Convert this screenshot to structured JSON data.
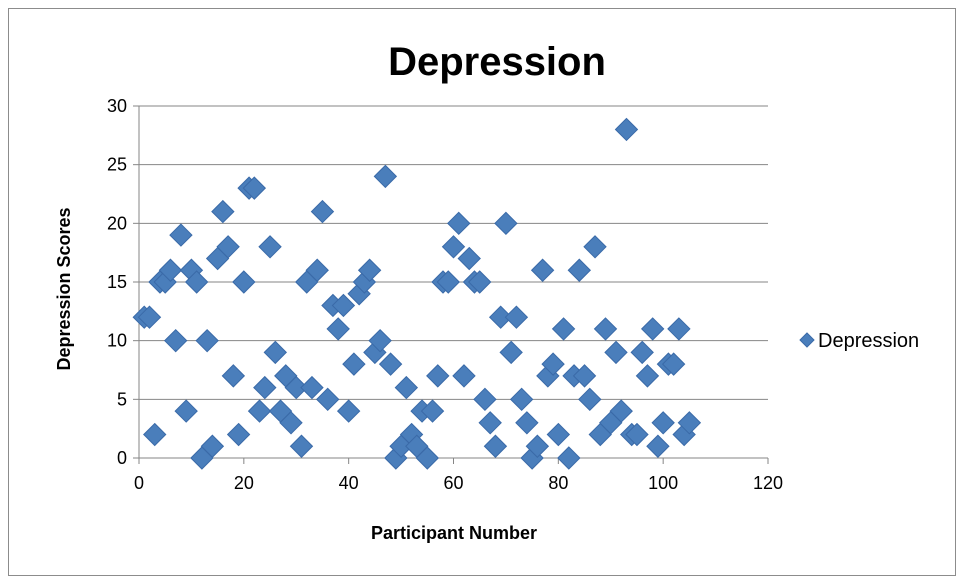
{
  "chart_data": {
    "type": "scatter",
    "title": "Depression",
    "xlabel": "Participant Number",
    "ylabel": "Depression Scores",
    "xlim": [
      0,
      120
    ],
    "ylim": [
      0,
      30
    ],
    "xticks": [
      0,
      20,
      40,
      60,
      80,
      100,
      120
    ],
    "yticks": [
      0,
      5,
      10,
      15,
      20,
      25,
      30
    ],
    "grid": "horizontal major gridlines",
    "legend_position": "right",
    "series": [
      {
        "name": "Depression",
        "color": "#4a7ebb",
        "marker": "diamond",
        "points": [
          [
            1,
            12
          ],
          [
            2,
            12
          ],
          [
            3,
            2
          ],
          [
            4,
            15
          ],
          [
            5,
            15
          ],
          [
            6,
            16
          ],
          [
            7,
            10
          ],
          [
            8,
            19
          ],
          [
            9,
            4
          ],
          [
            10,
            16
          ],
          [
            11,
            15
          ],
          [
            12,
            0
          ],
          [
            13,
            10
          ],
          [
            14,
            1
          ],
          [
            15,
            17
          ],
          [
            16,
            21
          ],
          [
            17,
            18
          ],
          [
            18,
            7
          ],
          [
            19,
            2
          ],
          [
            20,
            15
          ],
          [
            21,
            23
          ],
          [
            22,
            23
          ],
          [
            23,
            4
          ],
          [
            24,
            6
          ],
          [
            25,
            18
          ],
          [
            26,
            9
          ],
          [
            27,
            4
          ],
          [
            28,
            7
          ],
          [
            29,
            3
          ],
          [
            30,
            6
          ],
          [
            31,
            1
          ],
          [
            32,
            15
          ],
          [
            33,
            6
          ],
          [
            34,
            16
          ],
          [
            35,
            21
          ],
          [
            36,
            5
          ],
          [
            37,
            13
          ],
          [
            38,
            11
          ],
          [
            39,
            13
          ],
          [
            40,
            4
          ],
          [
            41,
            8
          ],
          [
            42,
            14
          ],
          [
            43,
            15
          ],
          [
            44,
            16
          ],
          [
            45,
            9
          ],
          [
            46,
            10
          ],
          [
            47,
            24
          ],
          [
            48,
            8
          ],
          [
            49,
            0
          ],
          [
            50,
            1
          ],
          [
            51,
            6
          ],
          [
            52,
            2
          ],
          [
            53,
            1
          ],
          [
            54,
            4
          ],
          [
            55,
            0
          ],
          [
            56,
            4
          ],
          [
            57,
            7
          ],
          [
            58,
            15
          ],
          [
            59,
            15
          ],
          [
            60,
            18
          ],
          [
            61,
            20
          ],
          [
            62,
            7
          ],
          [
            63,
            17
          ],
          [
            64,
            15
          ],
          [
            65,
            15
          ],
          [
            66,
            5
          ],
          [
            67,
            3
          ],
          [
            68,
            1
          ],
          [
            69,
            12
          ],
          [
            70,
            20
          ],
          [
            71,
            9
          ],
          [
            72,
            12
          ],
          [
            73,
            5
          ],
          [
            74,
            3
          ],
          [
            75,
            0
          ],
          [
            76,
            1
          ],
          [
            77,
            16
          ],
          [
            78,
            7
          ],
          [
            79,
            8
          ],
          [
            80,
            2
          ],
          [
            81,
            11
          ],
          [
            82,
            0
          ],
          [
            83,
            7
          ],
          [
            84,
            16
          ],
          [
            85,
            7
          ],
          [
            86,
            5
          ],
          [
            87,
            18
          ],
          [
            88,
            2
          ],
          [
            89,
            11
          ],
          [
            90,
            3
          ],
          [
            91,
            9
          ],
          [
            92,
            4
          ],
          [
            93,
            28
          ],
          [
            94,
            2
          ],
          [
            95,
            2
          ],
          [
            96,
            9
          ],
          [
            97,
            7
          ],
          [
            98,
            11
          ],
          [
            99,
            1
          ],
          [
            100,
            3
          ],
          [
            101,
            8
          ],
          [
            102,
            8
          ],
          [
            103,
            11
          ],
          [
            104,
            2
          ],
          [
            105,
            3
          ]
        ]
      }
    ]
  }
}
